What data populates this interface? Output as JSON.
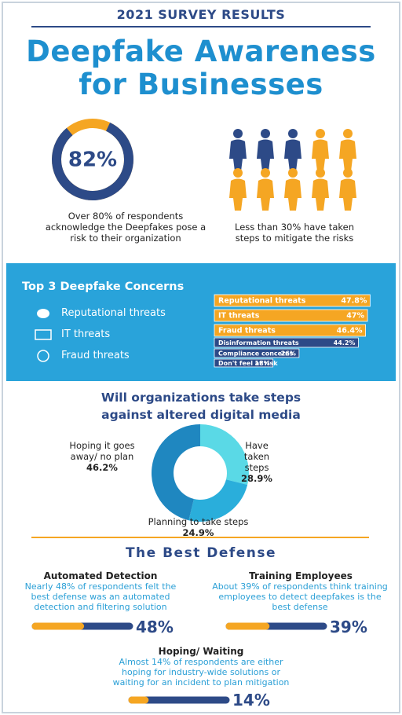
{
  "header": {
    "kicker": "2021 SURVEY RESULTS",
    "title_line1": "Deepfake Awareness",
    "title_line2": "for Businesses"
  },
  "risk": {
    "value": 82,
    "label": "82%",
    "caption": "Over 80% of respondents acknowledge the Deepfakes pose a risk to their organization"
  },
  "mitigation": {
    "caption": "Less than 30% have taken steps to mitigate the risks"
  },
  "concerns": {
    "title": "Top 3 Deepfake Concerns",
    "top3": [
      "Reputational threats",
      "IT threats",
      "Fraud threats"
    ],
    "bars": [
      {
        "name": "Reputational threats",
        "value": 47.8,
        "label": "47.8%",
        "color": "#f5a623"
      },
      {
        "name": "IT threats",
        "value": 47,
        "label": "47%",
        "color": "#f5a623"
      },
      {
        "name": "Fraud threats",
        "value": 46.4,
        "label": "46.4%",
        "color": "#f5a623"
      },
      {
        "name": "Disinformation threats",
        "value": 44.2,
        "label": "44.2%",
        "color": "#2d4a87"
      },
      {
        "name": "Compliance concerns",
        "value": 26,
        "label": "26%",
        "color": "#2d4a87"
      },
      {
        "name": "Don't feel at risk",
        "value": 18,
        "label": "18%",
        "color": "#2d4a87"
      }
    ]
  },
  "steps": {
    "title_line1": "Will organizations take steps",
    "title_line2": "against altered digital media",
    "segments": [
      {
        "name": "Have taken steps",
        "value": 28.9,
        "label": "28.9%",
        "color": "#5ad9e6"
      },
      {
        "name": "Planning to take steps",
        "value": 24.9,
        "label": "24.9%",
        "color": "#2aaedb"
      },
      {
        "name": "Hoping it goes away/ no plan",
        "value": 46.2,
        "label": "46.2%",
        "color": "#1f87c0"
      }
    ]
  },
  "defense": {
    "title": "The Best Defense",
    "items": [
      {
        "title": "Automated Detection",
        "text": "Nearly 48% of respondents felt the best defense was an automated detection and filtering solution",
        "value": 48,
        "label": "48%"
      },
      {
        "title": "Training Employees",
        "text": "About 39% of respondents think training employees to detect deepfakes is the best defense",
        "value": 39,
        "label": "39%"
      },
      {
        "title": "Hoping/ Waiting",
        "text": "Almost 14% of respondents are either hoping for industry-wide solutions or waiting for an incident to plan mitigation",
        "value": 14,
        "label": "14%"
      }
    ]
  }
}
